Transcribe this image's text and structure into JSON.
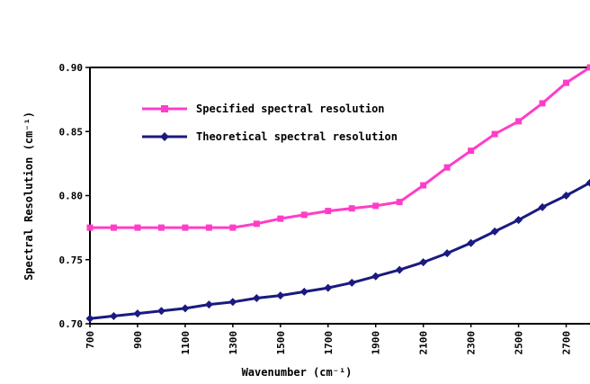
{
  "chart_data": {
    "type": "line",
    "title": "",
    "xlabel": "Wavenumber (cm⁻¹)",
    "ylabel": "Spectral Resolution (cm⁻¹)",
    "ylim": [
      0.7,
      0.9
    ],
    "y_ticks": [
      {
        "value": 0.7,
        "label": "0.70"
      },
      {
        "value": 0.75,
        "label": "0.75"
      },
      {
        "value": 0.8,
        "label": "0.80"
      },
      {
        "value": 0.85,
        "label": "0.85"
      },
      {
        "value": 0.9,
        "label": "0.90"
      }
    ],
    "x_ticks": [
      "700",
      "900",
      "1100",
      "1300",
      "1500",
      "1700",
      "1900",
      "2100",
      "2300",
      "2500",
      "2700"
    ],
    "x": [
      700,
      800,
      900,
      1000,
      1100,
      1200,
      1300,
      1400,
      1500,
      1600,
      1700,
      1800,
      1900,
      2000,
      2100,
      2200,
      2300,
      2400,
      2500,
      2600,
      2700,
      2800
    ],
    "legend_position": "top-left",
    "grid": false,
    "series": [
      {
        "name": "Specified spectral resolution",
        "color": "#ff3dc8",
        "marker": "square",
        "values": [
          0.775,
          0.775,
          0.775,
          0.775,
          0.775,
          0.775,
          0.775,
          0.778,
          0.782,
          0.785,
          0.788,
          0.79,
          0.792,
          0.795,
          0.808,
          0.822,
          0.835,
          0.848,
          0.858,
          0.872,
          0.888,
          0.9
        ]
      },
      {
        "name": "Theoretical spectral resolution",
        "color": "#1a1a80",
        "marker": "diamond",
        "values": [
          0.704,
          0.706,
          0.708,
          0.71,
          0.712,
          0.715,
          0.717,
          0.72,
          0.722,
          0.725,
          0.728,
          0.732,
          0.737,
          0.742,
          0.748,
          0.755,
          0.763,
          0.772,
          0.781,
          0.791,
          0.8,
          0.81
        ]
      }
    ]
  }
}
